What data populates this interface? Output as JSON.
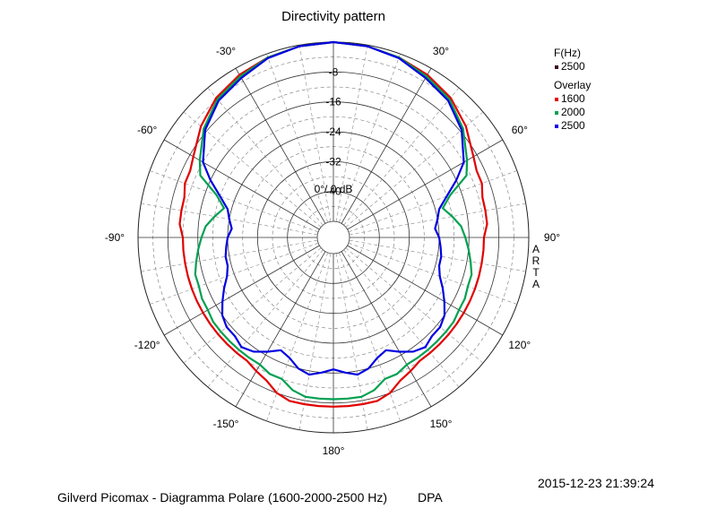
{
  "chart_data": {
    "type": "polar",
    "title": "Directivity pattern",
    "radial_unit_label": "0°/ 0 dB",
    "radial_ticks": [
      "-8",
      "-16",
      "-24",
      "-32",
      "-40"
    ],
    "radial_tick_values": [
      -8,
      -16,
      -24,
      -32,
      -40
    ],
    "rlim": [
      -48,
      0
    ],
    "angle_labels": [
      {
        "angle": 30,
        "text": "30°"
      },
      {
        "angle": 60,
        "text": "60°"
      },
      {
        "angle": 90,
        "text": "90°"
      },
      {
        "angle": 120,
        "text": "120°"
      },
      {
        "angle": 150,
        "text": "150°"
      },
      {
        "angle": 180,
        "text": "180°"
      },
      {
        "angle": -150,
        "text": "-150°"
      },
      {
        "angle": -120,
        "text": "-120°"
      },
      {
        "angle": -90,
        "text": "-90°"
      },
      {
        "angle": -60,
        "text": "-60°"
      },
      {
        "angle": -30,
        "text": "-30°"
      }
    ],
    "grid": true,
    "legend": {
      "position": "top-right",
      "freq_header": "F(Hz)",
      "freq_value": "2500",
      "overlay_header": "Overlay",
      "entries": [
        {
          "name": "1600",
          "color": "#e00000"
        },
        {
          "name": "2000",
          "color": "#00a050"
        },
        {
          "name": "2500",
          "color": "#0000e0"
        }
      ]
    },
    "series": [
      {
        "name": "1600",
        "color": "#e00000",
        "angles": [
          0,
          10,
          20,
          30,
          40,
          50,
          60,
          65,
          70,
          75,
          80,
          85,
          90,
          95,
          100,
          105,
          110,
          115,
          120,
          125,
          130,
          135,
          140,
          145,
          150,
          155,
          160,
          165,
          170,
          175,
          180
        ],
        "values": [
          0,
          -0.3,
          -1,
          -2,
          -3.5,
          -6,
          -9,
          -10,
          -10,
          -11,
          -11,
          -11,
          -12,
          -12,
          -12,
          -12,
          -12,
          -12,
          -12,
          -12,
          -12,
          -12,
          -12,
          -12,
          -11,
          -10,
          -8,
          -7,
          -7,
          -7,
          -7
        ]
      },
      {
        "name": "2000",
        "color": "#00a050",
        "angles": [
          0,
          10,
          20,
          30,
          40,
          50,
          60,
          65,
          70,
          75,
          80,
          85,
          90,
          95,
          100,
          105,
          110,
          115,
          120,
          125,
          130,
          135,
          140,
          145,
          150,
          155,
          160,
          165,
          170,
          175,
          180
        ],
        "values": [
          0,
          -0.3,
          -1,
          -2.5,
          -4,
          -7,
          -11,
          -13,
          -19,
          -22,
          -20,
          -18,
          -17,
          -16,
          -15,
          -14,
          -14,
          -13.5,
          -13.5,
          -13,
          -13,
          -13,
          -13,
          -13,
          -13,
          -12,
          -12,
          -10,
          -9,
          -9,
          -9
        ]
      },
      {
        "name": "2500",
        "color": "#0000e0",
        "angles": [
          0,
          10,
          20,
          30,
          40,
          50,
          60,
          65,
          70,
          75,
          80,
          85,
          90,
          95,
          100,
          105,
          110,
          115,
          120,
          125,
          130,
          135,
          140,
          145,
          150,
          155,
          160,
          165,
          170,
          175,
          180
        ],
        "values": [
          0,
          -0.3,
          -1.2,
          -3,
          -4.5,
          -7.5,
          -12,
          -16,
          -20,
          -23,
          -24,
          -25,
          -24,
          -23.5,
          -23,
          -23,
          -22,
          -20,
          -18,
          -16,
          -15,
          -15,
          -14,
          -15,
          -17,
          -19,
          -18,
          -16,
          -15,
          -16,
          -17
        ]
      }
    ]
  },
  "footer": {
    "description": "Gilverd Picomax - Diagramma Polare (1600-2000-2500 Hz)",
    "brand": "DPA",
    "timestamp": "2015-12-23  21:39:24"
  },
  "side_label": [
    "A",
    "R",
    "T",
    "A"
  ]
}
